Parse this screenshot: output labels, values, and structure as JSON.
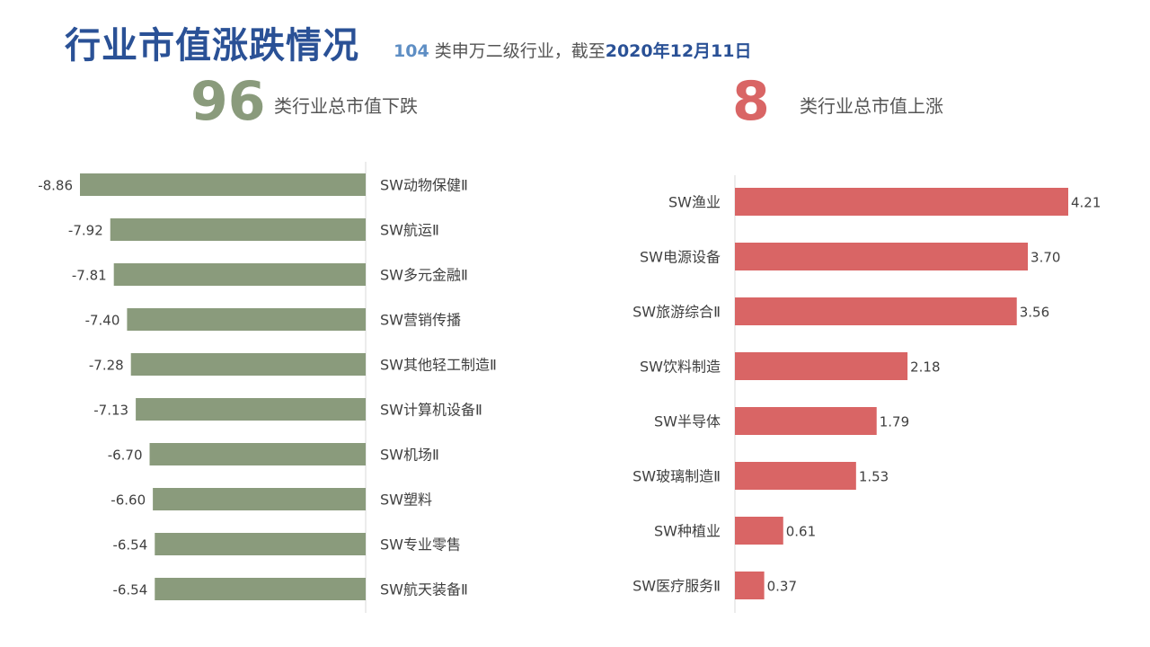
{
  "header": {
    "title": "行业市值涨跌情况",
    "count": "104",
    "subtitle_mid": "类申万二级行业，截至",
    "date": "2020年12月11日"
  },
  "summary": {
    "down_count": "96",
    "down_label": "类行业总市值下跌",
    "up_count": "8",
    "up_label": "类行业总市值上涨"
  },
  "colors": {
    "down": "#8a9b7c",
    "up": "#d96565",
    "title": "#2a5196"
  },
  "chart_data": [
    {
      "type": "bar",
      "orientation": "horizontal",
      "categories": [
        "SW动物保健Ⅱ",
        "SW航运Ⅱ",
        "SW多元金融Ⅱ",
        "SW营销传播",
        "SW其他轻工制造Ⅱ",
        "SW计算机设备Ⅱ",
        "SW机场Ⅱ",
        "SW塑料",
        "SW专业零售",
        "SW航天装备Ⅱ"
      ],
      "values": [
        -8.86,
        -7.92,
        -7.81,
        -7.4,
        -7.28,
        -7.13,
        -6.7,
        -6.6,
        -6.54,
        -6.54
      ],
      "labels": [
        "-8.86",
        "-7.92",
        "-7.81",
        "-7.40",
        "-7.28",
        "-7.13",
        "-6.70",
        "-6.60",
        "-6.54",
        "-6.54"
      ],
      "xlim": [
        -8.86,
        0
      ],
      "grid": false,
      "legend": "none"
    },
    {
      "type": "bar",
      "orientation": "horizontal",
      "categories": [
        "SW渔业",
        "SW电源设备",
        "SW旅游综合Ⅱ",
        "SW饮料制造",
        "SW半导体",
        "SW玻璃制造Ⅱ",
        "SW种植业",
        "SW医疗服务Ⅱ"
      ],
      "values": [
        4.21,
        3.7,
        3.56,
        2.18,
        1.79,
        1.53,
        0.61,
        0.37
      ],
      "labels": [
        "4.21",
        "3.70",
        "3.56",
        "2.18",
        "1.79",
        "1.53",
        "0.61",
        "0.37"
      ],
      "xlim": [
        0,
        4.21
      ],
      "grid": false,
      "legend": "none"
    }
  ]
}
